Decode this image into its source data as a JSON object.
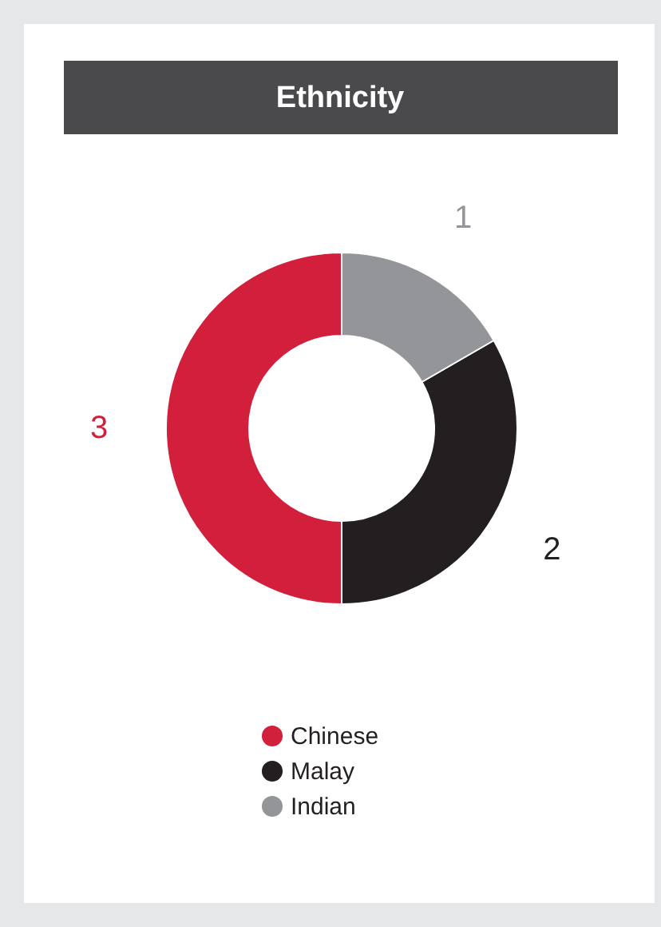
{
  "chart_data": {
    "type": "donut",
    "title": "Ethnicity",
    "categories": [
      "Chinese",
      "Malay",
      "Indian"
    ],
    "values": [
      3,
      2,
      1
    ],
    "colors": [
      "#d21f3c",
      "#231f20",
      "#939598"
    ],
    "data_labels": true,
    "legend": "bottom"
  }
}
